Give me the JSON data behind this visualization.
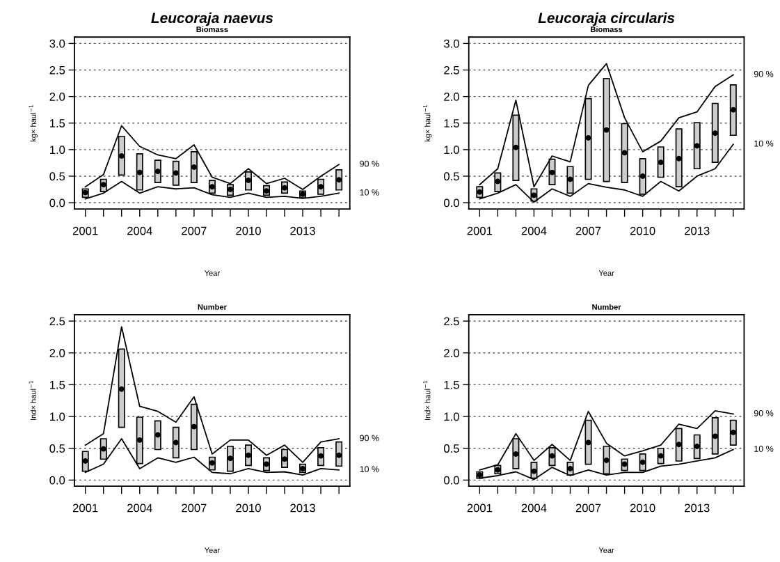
{
  "chart_data": [
    {
      "type": "bar",
      "title": "Leucoraja naevus",
      "subtitle": "Biomass",
      "xlabel": "Year",
      "ylabel": "kg× haul$^{−1}$",
      "x": [
        2001,
        2002,
        2003,
        2004,
        2005,
        2006,
        2007,
        2008,
        2009,
        2010,
        2011,
        2012,
        2013,
        2014,
        2015
      ],
      "xlim": [
        2000.4,
        2015.6
      ],
      "xticks": [
        2001,
        {
          "value": 2002,
          "label": null
        },
        {
          "value": 2003,
          "label": null
        },
        2004,
        {
          "value": 2005,
          "label": null
        },
        {
          "value": 2006,
          "label": null
        },
        2007,
        {
          "value": 2008,
          "label": null
        },
        {
          "value": 2009,
          "label": null
        },
        2010,
        {
          "value": 2011,
          "label": null
        },
        {
          "value": 2012,
          "label": null
        },
        2013,
        {
          "value": 2014,
          "label": null
        },
        {
          "value": 2015,
          "label": null
        }
      ],
      "ylim": [
        -0.12,
        3.12
      ],
      "yticks": [
        {
          "value": 0,
          "label": "0.0"
        },
        {
          "value": 0.5,
          "label": "0.5"
        },
        {
          "value": 1,
          "label": "1.0"
        },
        {
          "value": 1.5,
          "label": "1.5"
        },
        {
          "value": 2,
          "label": "2.0"
        },
        {
          "value": 2.5,
          "label": "2.5"
        },
        {
          "value": 3,
          "label": "3.0"
        }
      ],
      "grid": "y",
      "legend": false,
      "series": [
        {
          "color": "#cccccc",
          "base": [
            0.1,
            0.21,
            0.52,
            0.24,
            0.38,
            0.33,
            0.38,
            0.18,
            0.14,
            0.24,
            0.14,
            0.18,
            0.09,
            0.16,
            0.24
          ],
          "values": [
            0.16,
            0.23,
            0.73,
            0.68,
            0.42,
            0.45,
            0.58,
            0.24,
            0.2,
            0.34,
            0.18,
            0.21,
            0.13,
            0.28,
            0.38
          ]
        },
        {
          "type": "line",
          "name": "90 %",
          "color": "#000000",
          "values": [
            0.3,
            0.53,
            1.45,
            1.06,
            0.9,
            0.83,
            1.09,
            0.48,
            0.36,
            0.64,
            0.36,
            0.46,
            0.25,
            0.5,
            0.72
          ]
        },
        {
          "type": "line",
          "name": "10 %",
          "color": "#000000",
          "values": [
            0.07,
            0.18,
            0.4,
            0.18,
            0.3,
            0.26,
            0.28,
            0.15,
            0.1,
            0.18,
            0.1,
            0.12,
            0.08,
            0.12,
            0.18
          ]
        },
        {
          "type": "scatter",
          "color": "#000000",
          "marker": "circle",
          "values": [
            0.19,
            0.34,
            0.88,
            0.57,
            0.59,
            0.56,
            0.67,
            0.3,
            0.25,
            0.42,
            0.22,
            0.28,
            0.16,
            0.3,
            0.43
          ]
        }
      ]
    },
    {
      "type": "bar",
      "title": "Leucoraja circularis",
      "subtitle": "Biomass",
      "xlabel": "Year",
      "ylabel": "kg× haul$^{−1}$",
      "x": [
        2001,
        2002,
        2003,
        2004,
        2005,
        2006,
        2007,
        2008,
        2009,
        2010,
        2011,
        2012,
        2013,
        2014,
        2015
      ],
      "xlim": [
        2000.4,
        2015.6
      ],
      "xticks": [
        2001,
        {
          "value": 2002,
          "label": null
        },
        {
          "value": 2003,
          "label": null
        },
        2004,
        {
          "value": 2005,
          "label": null
        },
        {
          "value": 2006,
          "label": null
        },
        2007,
        {
          "value": 2008,
          "label": null
        },
        {
          "value": 2009,
          "label": null
        },
        2010,
        {
          "value": 2011,
          "label": null
        },
        {
          "value": 2012,
          "label": null
        },
        2013,
        {
          "value": 2014,
          "label": null
        },
        {
          "value": 2015,
          "label": null
        }
      ],
      "ylim": [
        -0.12,
        3.12
      ],
      "yticks": [
        {
          "value": 0,
          "label": "0.0"
        },
        {
          "value": 0.5,
          "label": "0.5"
        },
        {
          "value": 1,
          "label": "1.0"
        },
        {
          "value": 1.5,
          "label": "1.5"
        },
        {
          "value": 2,
          "label": "2.0"
        },
        {
          "value": 2.5,
          "label": "2.5"
        },
        {
          "value": 3,
          "label": "3.0"
        }
      ],
      "grid": "y",
      "legend": false,
      "series": [
        {
          "color": "#cccccc",
          "base": [
            0.1,
            0.21,
            0.42,
            0.03,
            0.34,
            0.18,
            0.44,
            0.4,
            0.38,
            0.16,
            0.48,
            0.3,
            0.64,
            0.76,
            1.27
          ],
          "values": [
            0.2,
            0.35,
            1.23,
            0.23,
            0.48,
            0.5,
            1.52,
            1.94,
            1.11,
            0.67,
            0.57,
            1.09,
            0.87,
            1.11,
            0.95
          ]
        },
        {
          "type": "line",
          "name": "90 %",
          "color": "#000000",
          "values": [
            0.34,
            0.64,
            1.93,
            0.3,
            0.88,
            0.77,
            2.21,
            2.62,
            1.6,
            0.96,
            1.16,
            1.6,
            1.71,
            2.19,
            2.41
          ]
        },
        {
          "type": "line",
          "name": "10 %",
          "color": "#000000",
          "values": [
            0.07,
            0.18,
            0.34,
            0.01,
            0.26,
            0.12,
            0.36,
            0.29,
            0.24,
            0.12,
            0.4,
            0.22,
            0.5,
            0.64,
            1.1
          ]
        },
        {
          "type": "scatter",
          "color": "#000000",
          "marker": "circle",
          "values": [
            0.2,
            0.4,
            1.04,
            0.14,
            0.57,
            0.44,
            1.22,
            1.37,
            0.94,
            0.5,
            0.76,
            0.83,
            1.07,
            1.31,
            1.75
          ]
        }
      ]
    },
    {
      "type": "bar",
      "subtitle": "Number",
      "xlabel": "Year",
      "ylabel": "Ind× haul$^{−1}$",
      "x": [
        2001,
        2002,
        2003,
        2004,
        2005,
        2006,
        2007,
        2008,
        2009,
        2010,
        2011,
        2012,
        2013,
        2014,
        2015
      ],
      "xlim": [
        2000.4,
        2015.6
      ],
      "xticks": [
        2001,
        {
          "value": 2002,
          "label": null
        },
        {
          "value": 2003,
          "label": null
        },
        2004,
        {
          "value": 2005,
          "label": null
        },
        {
          "value": 2006,
          "label": null
        },
        2007,
        {
          "value": 2008,
          "label": null
        },
        {
          "value": 2009,
          "label": null
        },
        2010,
        {
          "value": 2011,
          "label": null
        },
        {
          "value": 2012,
          "label": null
        },
        2013,
        {
          "value": 2014,
          "label": null
        },
        {
          "value": 2015,
          "label": null
        }
      ],
      "ylim": [
        -0.095,
        2.6
      ],
      "yticks": [
        {
          "value": 0,
          "label": "0.0"
        },
        {
          "value": 0.5,
          "label": "0.5"
        },
        {
          "value": 1,
          "label": "1.0"
        },
        {
          "value": 1.5,
          "label": "1.5"
        },
        {
          "value": 2,
          "label": "2.0"
        },
        {
          "value": 2.5,
          "label": "2.5"
        }
      ],
      "grid": "y",
      "legend": false,
      "series": [
        {
          "color": "#cccccc",
          "base": [
            0.14,
            0.33,
            0.83,
            0.26,
            0.48,
            0.35,
            0.48,
            0.16,
            0.14,
            0.23,
            0.15,
            0.2,
            0.12,
            0.23,
            0.22
          ],
          "values": [
            0.31,
            0.32,
            1.23,
            0.73,
            0.45,
            0.48,
            0.71,
            0.2,
            0.39,
            0.32,
            0.2,
            0.28,
            0.13,
            0.28,
            0.38
          ]
        },
        {
          "type": "line",
          "name": "90 %",
          "color": "#000000",
          "values": [
            0.55,
            0.73,
            2.41,
            1.16,
            1.08,
            0.91,
            1.31,
            0.41,
            0.63,
            0.63,
            0.39,
            0.55,
            0.28,
            0.6,
            0.65
          ]
        },
        {
          "type": "line",
          "name": "10 %",
          "color": "#000000",
          "values": [
            0.12,
            0.25,
            0.65,
            0.18,
            0.35,
            0.28,
            0.36,
            0.12,
            0.1,
            0.18,
            0.12,
            0.13,
            0.08,
            0.18,
            0.16
          ]
        },
        {
          "type": "scatter",
          "color": "#000000",
          "marker": "circle",
          "values": [
            0.3,
            0.49,
            1.43,
            0.63,
            0.71,
            0.59,
            0.84,
            0.27,
            0.34,
            0.39,
            0.25,
            0.33,
            0.18,
            0.38,
            0.39
          ]
        }
      ]
    },
    {
      "type": "bar",
      "subtitle": "Number",
      "xlabel": "Year",
      "ylabel": "Ind× haul$^{−1}$",
      "x": [
        2001,
        2002,
        2003,
        2004,
        2005,
        2006,
        2007,
        2008,
        2009,
        2010,
        2011,
        2012,
        2013,
        2014,
        2015
      ],
      "xlim": [
        2000.4,
        2015.6
      ],
      "xticks": [
        2001,
        {
          "value": 2002,
          "label": null
        },
        {
          "value": 2003,
          "label": null
        },
        2004,
        {
          "value": 2005,
          "label": null
        },
        {
          "value": 2006,
          "label": null
        },
        2007,
        {
          "value": 2008,
          "label": null
        },
        {
          "value": 2009,
          "label": null
        },
        2010,
        {
          "value": 2011,
          "label": null
        },
        {
          "value": 2012,
          "label": null
        },
        2013,
        {
          "value": 2014,
          "label": null
        },
        {
          "value": 2015,
          "label": null
        }
      ],
      "ylim": [
        -0.095,
        2.6
      ],
      "yticks": [
        {
          "value": 0,
          "label": "0.0"
        },
        {
          "value": 0.5,
          "label": "0.5"
        },
        {
          "value": 1,
          "label": "1.0"
        },
        {
          "value": 1.5,
          "label": "1.5"
        },
        {
          "value": 2,
          "label": "2.0"
        },
        {
          "value": 2.5,
          "label": "2.5"
        }
      ],
      "grid": "y",
      "legend": false,
      "series": [
        {
          "color": "#cccccc",
          "base": [
            0.03,
            0.1,
            0.18,
            0.03,
            0.23,
            0.08,
            0.25,
            0.1,
            0.15,
            0.15,
            0.26,
            0.3,
            0.34,
            0.41,
            0.55
          ],
          "values": [
            0.1,
            0.13,
            0.47,
            0.25,
            0.28,
            0.2,
            0.69,
            0.43,
            0.18,
            0.26,
            0.24,
            0.51,
            0.37,
            0.57,
            0.39
          ]
        },
        {
          "type": "line",
          "name": "90 %",
          "color": "#000000",
          "values": [
            0.16,
            0.24,
            0.73,
            0.31,
            0.56,
            0.31,
            1.08,
            0.58,
            0.38,
            0.46,
            0.55,
            0.88,
            0.81,
            1.09,
            1.04
          ]
        },
        {
          "type": "line",
          "name": "10 %",
          "color": "#000000",
          "values": [
            0.03,
            0.07,
            0.13,
            0.01,
            0.2,
            0.07,
            0.16,
            0.08,
            0.12,
            0.12,
            0.22,
            0.25,
            0.3,
            0.35,
            0.48
          ]
        },
        {
          "type": "scatter",
          "color": "#000000",
          "marker": "circle",
          "values": [
            0.08,
            0.16,
            0.41,
            0.14,
            0.38,
            0.18,
            0.59,
            0.31,
            0.25,
            0.28,
            0.38,
            0.56,
            0.53,
            0.69,
            0.75
          ]
        }
      ]
    }
  ]
}
